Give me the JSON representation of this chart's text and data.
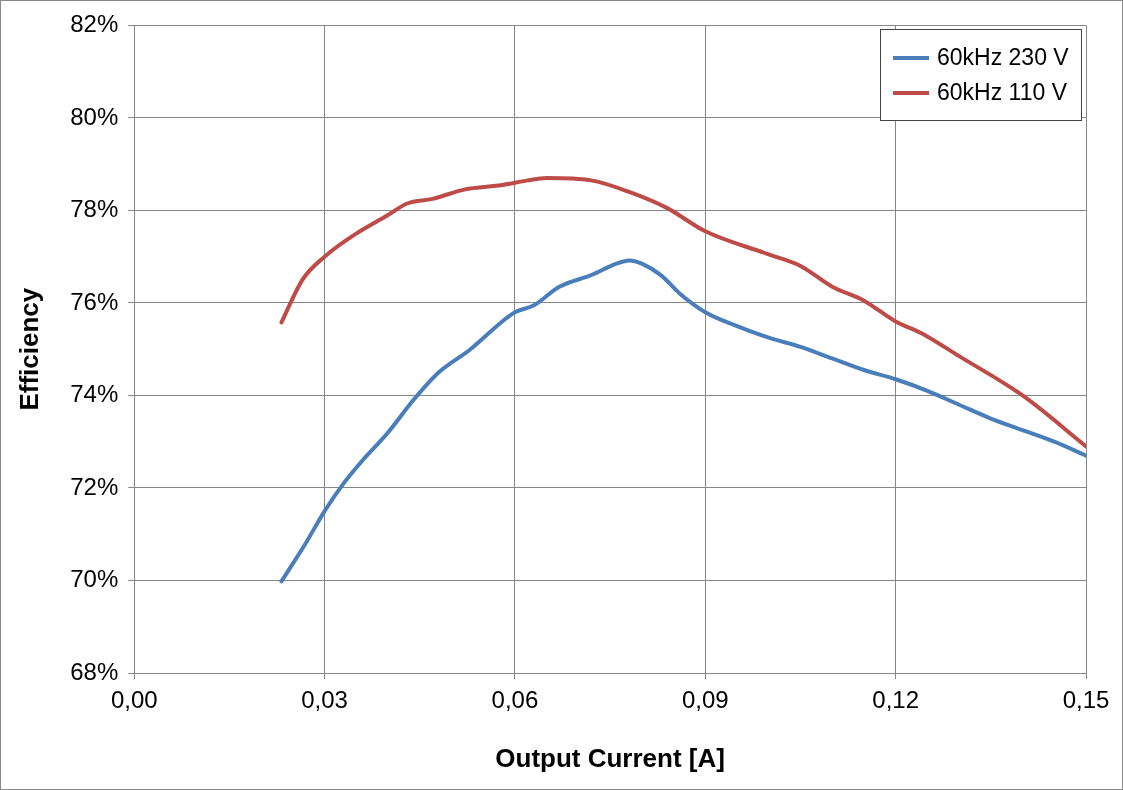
{
  "chart_data": {
    "type": "line",
    "xlabel": "Output Current [A]",
    "ylabel": "Efficiency",
    "xlim": [
      0,
      0.15
    ],
    "xticks": [
      {
        "value": 0,
        "label": "0,00"
      },
      {
        "value": 0.03,
        "label": "0,03"
      },
      {
        "value": 0.06,
        "label": "0,06"
      },
      {
        "value": 0.09,
        "label": "0,09"
      },
      {
        "value": 0.12,
        "label": "0,12"
      },
      {
        "value": 0.15,
        "label": "0,15"
      }
    ],
    "ylim": [
      68,
      82
    ],
    "yticks": [
      {
        "value": 68,
        "label": "68%"
      },
      {
        "value": 70,
        "label": "70%"
      },
      {
        "value": 72,
        "label": "72%"
      },
      {
        "value": 74,
        "label": "74%"
      },
      {
        "value": 76,
        "label": "76%"
      },
      {
        "value": 78,
        "label": "78%"
      },
      {
        "value": 80,
        "label": "80%"
      },
      {
        "value": 82,
        "label": "82%"
      }
    ],
    "grid": true,
    "legend": "top right",
    "marker": "none",
    "line_style": "solid",
    "series": [
      {
        "name": "60kHz 230 V",
        "color": "#4a7ebb",
        "x": [
          0.0232,
          0.027,
          0.03,
          0.033,
          0.036,
          0.04,
          0.044,
          0.048,
          0.053,
          0.058,
          0.06,
          0.063,
          0.067,
          0.072,
          0.076,
          0.078,
          0.08,
          0.083,
          0.086,
          0.09,
          0.095,
          0.1,
          0.105,
          0.11,
          0.115,
          0.12,
          0.125,
          0.13,
          0.135,
          0.14,
          0.145,
          0.15
        ],
        "values": [
          69.98,
          70.8,
          71.5,
          72.1,
          72.6,
          73.2,
          73.9,
          74.5,
          75.0,
          75.6,
          75.8,
          75.95,
          76.35,
          76.6,
          76.85,
          76.92,
          76.85,
          76.6,
          76.2,
          75.8,
          75.5,
          75.25,
          75.05,
          74.8,
          74.55,
          74.35,
          74.1,
          73.8,
          73.5,
          73.25,
          73.0,
          72.7
        ]
      },
      {
        "name": "60kHz 110 V",
        "color": "#be4b48",
        "x": [
          0.0232,
          0.0265,
          0.03,
          0.035,
          0.04,
          0.043,
          0.047,
          0.052,
          0.058,
          0.062,
          0.065,
          0.072,
          0.078,
          0.084,
          0.09,
          0.1,
          0.105,
          0.11,
          0.115,
          0.12,
          0.124,
          0.13,
          0.14,
          0.15
        ],
        "values": [
          75.58,
          76.5,
          77.0,
          77.5,
          77.9,
          78.15,
          78.25,
          78.45,
          78.55,
          78.65,
          78.7,
          78.65,
          78.4,
          78.05,
          77.55,
          77.05,
          76.8,
          76.35,
          76.05,
          75.6,
          75.35,
          74.85,
          74.0,
          72.9
        ]
      }
    ]
  }
}
